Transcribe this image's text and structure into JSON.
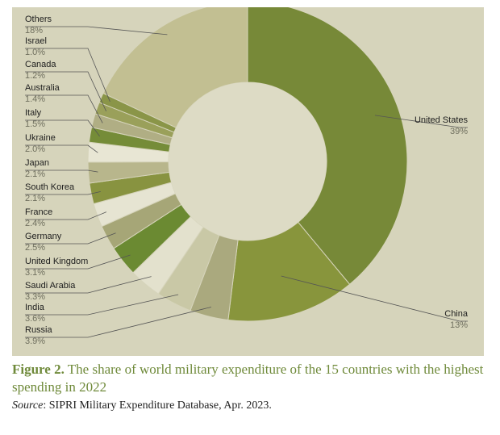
{
  "chart_data": {
    "type": "pie",
    "donut": true,
    "slices": [
      {
        "label": "United States",
        "value": "39%",
        "share": 39,
        "color": "#778938"
      },
      {
        "label": "China",
        "value": "13%",
        "share": 13,
        "color": "#88953c"
      },
      {
        "label": "Russia",
        "value": "3.9%",
        "share": 3.9,
        "color": "#aaa97e"
      },
      {
        "label": "India",
        "value": "3.6%",
        "share": 3.6,
        "color": "#c9c8a6"
      },
      {
        "label": "Saudi Arabia",
        "value": "3.3%",
        "share": 3.3,
        "color": "#e3e1cd"
      },
      {
        "label": "United Kingdom",
        "value": "3.1%",
        "share": 3.1,
        "color": "#6b8a32"
      },
      {
        "label": "Germany",
        "value": "2.5%",
        "share": 2.5,
        "color": "#a6a677"
      },
      {
        "label": "France",
        "value": "2.4%",
        "share": 2.4,
        "color": "#e6e4d2"
      },
      {
        "label": "South Korea",
        "value": "2.1%",
        "share": 2.1,
        "color": "#889340"
      },
      {
        "label": "Japan",
        "value": "2.1%",
        "share": 2.1,
        "color": "#b8b68c"
      },
      {
        "label": "Ukraine",
        "value": "2.0%",
        "share": 2.0,
        "color": "#e8e6d4"
      },
      {
        "label": "Italy",
        "value": "1.5%",
        "share": 1.5,
        "color": "#758c38"
      },
      {
        "label": "Australia",
        "value": "1.4%",
        "share": 1.4,
        "color": "#b0ae84"
      },
      {
        "label": "Canada",
        "value": "1.2%",
        "share": 1.2,
        "color": "#9aa05a"
      },
      {
        "label": "Israel",
        "value": "1.0%",
        "share": 1.0,
        "color": "#8a9548"
      },
      {
        "label": "Others",
        "value": "18%",
        "share": 18,
        "color": "#c2bf92"
      }
    ]
  },
  "caption": {
    "figure_label": "Figure 2.",
    "text": " The share of world military expenditure of the 15 countries with the highest spending in 2022"
  },
  "source": {
    "label": "Source",
    "text": ": SIPRI Military Expenditure Database, Apr. 2023."
  },
  "colors": {
    "panel": "#d6d4bb",
    "hole": "#dddbc5",
    "leader": "#555555",
    "caption": "#6f8a3a"
  }
}
